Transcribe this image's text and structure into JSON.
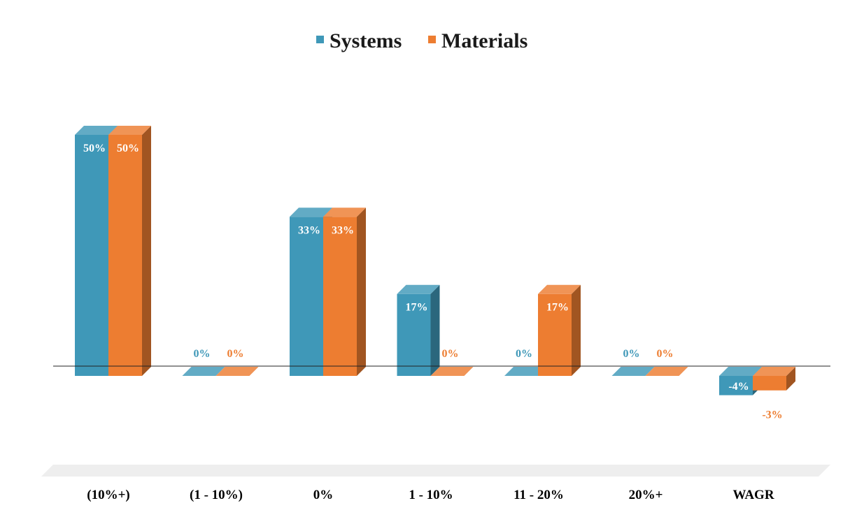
{
  "chart_data": {
    "type": "bar",
    "title": "",
    "xlabel": "",
    "ylabel": "",
    "categories": [
      "(10%+)",
      "(1 - 10%)",
      "0%",
      "1 - 10%",
      "11 - 20%",
      "20%+",
      "WAGR"
    ],
    "series": [
      {
        "name": "Systems",
        "values": [
          50,
          0,
          33,
          17,
          0,
          0,
          -4
        ],
        "labels": [
          "50%",
          "0%",
          "33%",
          "17%",
          "0%",
          "0%",
          "-4%"
        ],
        "color": "#3f98b8"
      },
      {
        "name": "Materials",
        "values": [
          50,
          0,
          33,
          0,
          17,
          0,
          -3
        ],
        "labels": [
          "50%",
          "0%",
          "33%",
          "0%",
          "17%",
          "0%",
          "-3%"
        ],
        "color": "#ed7d31"
      }
    ],
    "legend_position": "top",
    "grid": false,
    "style": "3d-column"
  }
}
